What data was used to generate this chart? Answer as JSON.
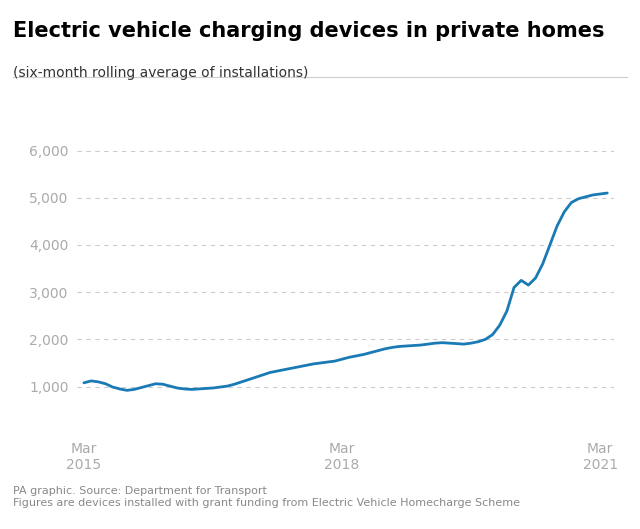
{
  "title": "Electric vehicle charging devices in private homes",
  "subtitle": "(six-month rolling average of installations)",
  "footer_line1": "PA graphic. Source: Department for Transport",
  "footer_line2": "Figures are devices installed with grant funding from Electric Vehicle Homecharge Scheme",
  "line_color": "#1a7ab5",
  "line_width": 2.0,
  "background_color": "#ffffff",
  "grid_color": "#cccccc",
  "tick_label_color": "#aaaaaa",
  "title_color": "#000000",
  "subtitle_color": "#333333",
  "footer_color": "#888888",
  "ylim": [
    0,
    6500
  ],
  "yticks": [
    1000,
    2000,
    3000,
    4000,
    5000,
    6000
  ],
  "x_tick_labels": [
    "Mar\n2015",
    "Mar\n2018",
    "Mar\n2021"
  ],
  "x_tick_positions": [
    0,
    36,
    72
  ],
  "data_x": [
    0,
    1,
    2,
    3,
    4,
    5,
    6,
    7,
    8,
    9,
    10,
    11,
    12,
    13,
    14,
    15,
    16,
    17,
    18,
    19,
    20,
    21,
    22,
    23,
    24,
    25,
    26,
    27,
    28,
    29,
    30,
    31,
    32,
    33,
    34,
    35,
    36,
    37,
    38,
    39,
    40,
    41,
    42,
    43,
    44,
    45,
    46,
    47,
    48,
    49,
    50,
    51,
    52,
    53,
    54,
    55,
    56,
    57,
    58,
    59,
    60,
    61,
    62,
    63,
    64,
    65,
    66,
    67,
    68,
    69,
    70,
    71,
    72,
    73
  ],
  "data_y": [
    1080,
    1120,
    1100,
    1060,
    990,
    950,
    920,
    940,
    980,
    1020,
    1060,
    1050,
    1010,
    970,
    950,
    940,
    950,
    960,
    970,
    990,
    1010,
    1050,
    1100,
    1150,
    1200,
    1250,
    1300,
    1330,
    1360,
    1390,
    1420,
    1450,
    1480,
    1500,
    1520,
    1540,
    1580,
    1620,
    1650,
    1680,
    1720,
    1760,
    1800,
    1830,
    1850,
    1860,
    1870,
    1880,
    1900,
    1920,
    1930,
    1920,
    1910,
    1900,
    1920,
    1950,
    2000,
    2100,
    2300,
    2600,
    3100,
    3250,
    3150,
    3300,
    3600,
    4000,
    4400,
    4700,
    4900,
    4980,
    5020,
    5060,
    5080,
    5100
  ]
}
